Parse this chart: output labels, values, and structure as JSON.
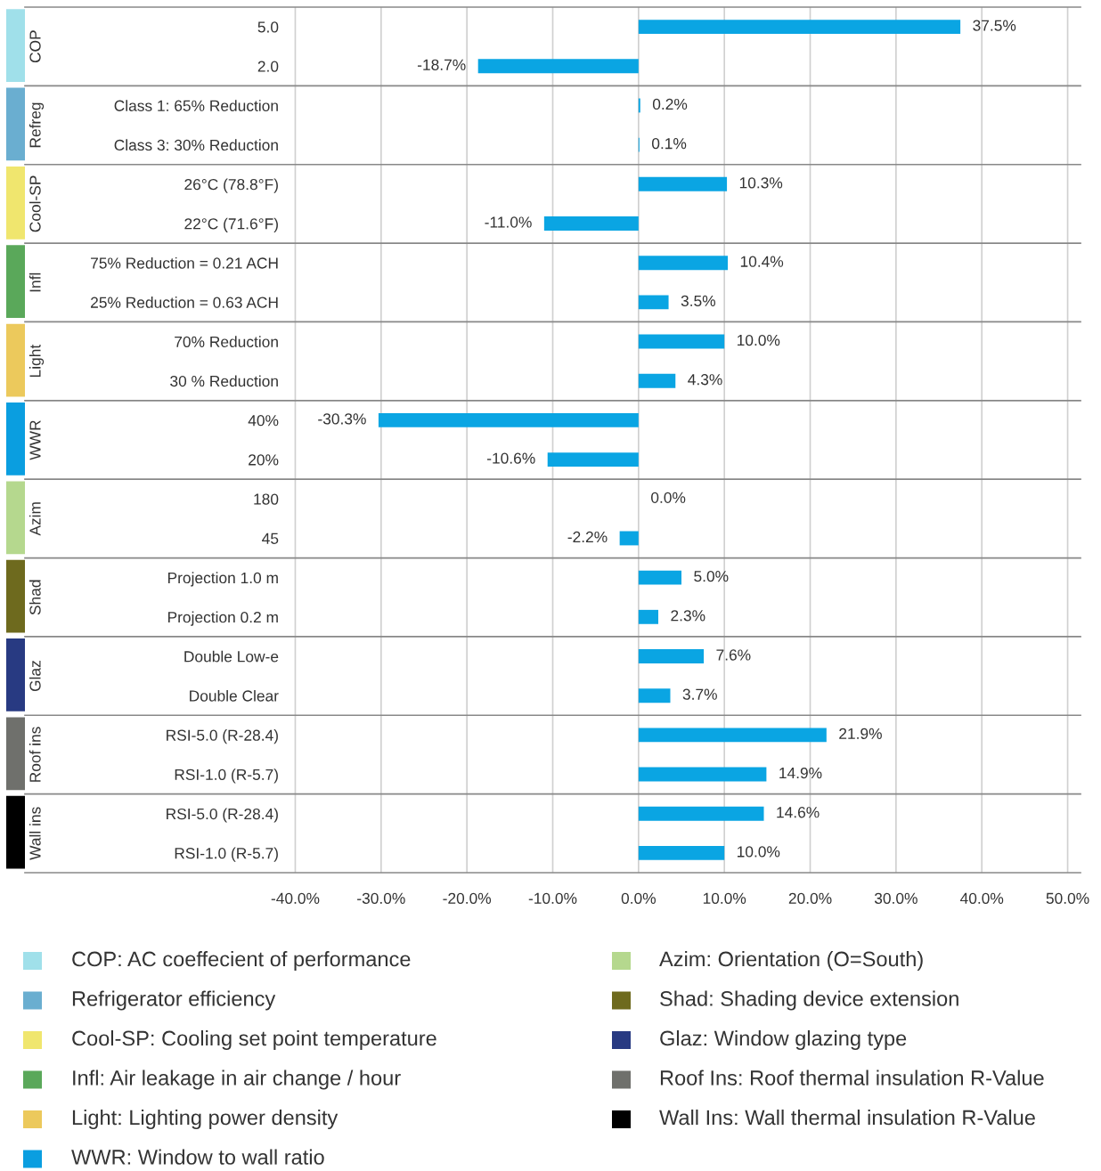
{
  "chart_data": {
    "type": "bar",
    "orientation": "horizontal",
    "categories": [
      "5.0",
      "2.0",
      "Class 1: 65% Reduction",
      "Class 3: 30% Reduction",
      "26°C (78.8°F)",
      "22°C (71.6°F)",
      "75% Reduction = 0.21 ACH",
      "25% Reduction = 0.63 ACH",
      "70% Reduction",
      "30 % Reduction",
      "40%",
      "20%",
      "180",
      "45",
      "Projection 1.0 m",
      "Projection 0.2 m",
      "Double Low-e",
      "Double Clear",
      "RSI-5.0 (R-28.4)",
      "RSI-1.0 (R-5.7)",
      "RSI-5.0 (R-28.4)",
      "RSI-1.0 (R-5.7)"
    ],
    "series": [
      {
        "color": "#0aa5e3",
        "values": [
          37.5,
          -18.7,
          0.2,
          0.1,
          10.3,
          -11.0,
          10.4,
          3.5,
          10.0,
          4.3,
          -30.3,
          -10.6,
          0.0,
          -2.2,
          5.0,
          2.3,
          7.6,
          3.7,
          21.9,
          14.9,
          14.6,
          10.0
        ],
        "value_labels": [
          "37.5%",
          "-18.7%",
          "0.2%",
          "0.1%",
          "10.3%",
          "-11.0%",
          "10.4%",
          "3.5%",
          "10.0%",
          "4.3%",
          "-30.3%",
          "-10.6%",
          "0.0%",
          "-2.2%",
          "5.0%",
          "2.3%",
          "7.6%",
          "3.7%",
          "21.9%",
          "14.9%",
          "14.6%",
          "10.0%"
        ]
      }
    ],
    "xlim": [
      -71.5,
      51.5
    ],
    "xticks": [
      {
        "value": -40,
        "label": "-40.0%"
      },
      {
        "value": -30,
        "label": "-30.0%"
      },
      {
        "value": -20,
        "label": "-20.0%"
      },
      {
        "value": -10,
        "label": "-10.0%"
      },
      {
        "value": 0,
        "label": "0.0%"
      },
      {
        "value": 10,
        "label": "10.0%"
      },
      {
        "value": 20,
        "label": "20.0%"
      },
      {
        "value": 30,
        "label": "30.0%"
      },
      {
        "value": 40,
        "label": "40.0%"
      },
      {
        "value": 50,
        "label": "50.0%"
      }
    ],
    "grid": "x",
    "annotations": [
      "COP",
      "Refreg",
      "Cool-SP",
      "Infl",
      "Light",
      "WWR",
      "Azim",
      "Shad",
      "Glaz",
      "Roof ins",
      "Wall ins",
      "COP: AC coeffecient of performance",
      "Refrigerator efficiency",
      "Cool-SP: Cooling set point temperature",
      "Infl: Air leakage in air change / hour",
      "Light: Lighting power density",
      "WWR: Window to wall ratio",
      "Azim: Orientation (O=South)",
      "Shad: Shading device extension",
      "Glaz: Window glazing type",
      "Roof Ins: Roof thermal insulation R-Value",
      "Wall Ins: Wall thermal insulation R-Value"
    ]
  }
}
